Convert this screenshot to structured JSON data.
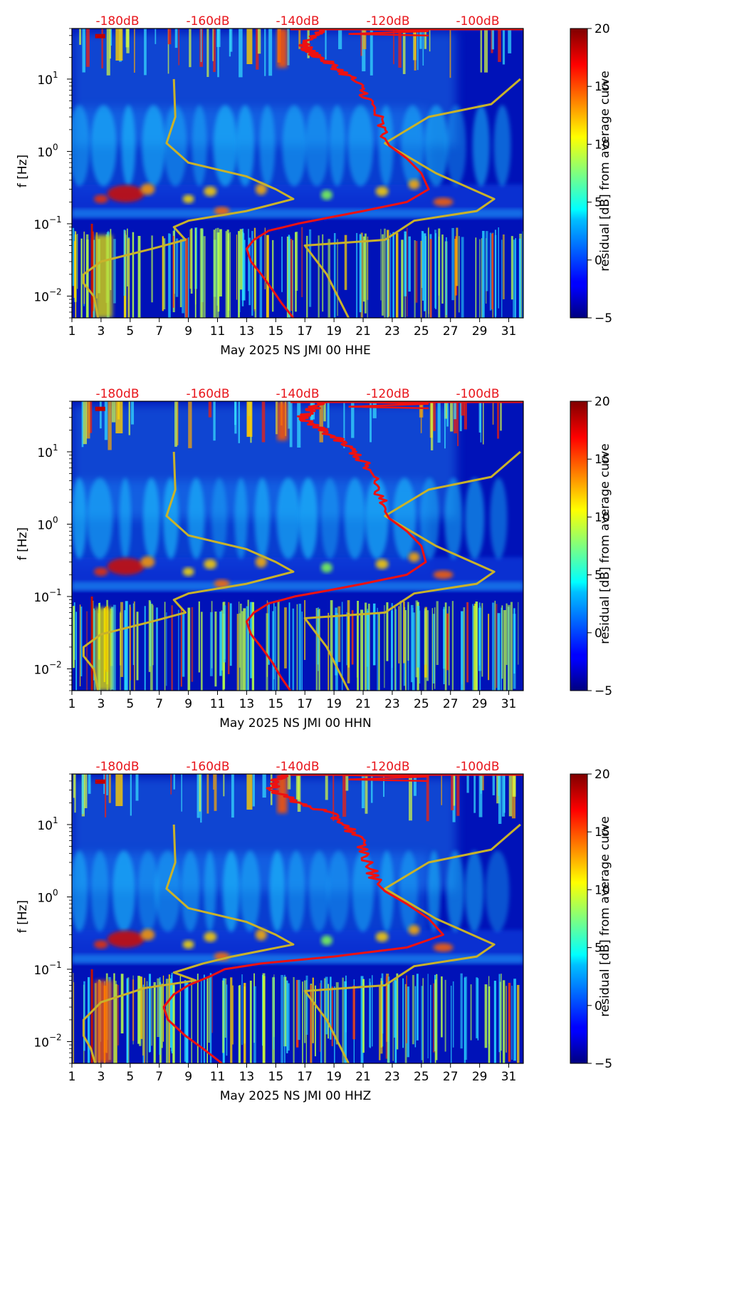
{
  "chart_data": [
    {
      "type": "heatmap",
      "xlabel": "May 2025 NS JMI 00 HHE",
      "ylabel": "f [Hz]",
      "x_ticks": [
        "1",
        "3",
        "5",
        "7",
        "9",
        "11",
        "13",
        "15",
        "17",
        "19",
        "21",
        "23",
        "25",
        "27",
        "29",
        "31"
      ],
      "xlim": [
        1,
        32
      ],
      "y_ticks": [
        {
          "base": "10",
          "exp": "1",
          "value": 10
        },
        {
          "base": "10",
          "exp": "0",
          "value": 1
        },
        {
          "base": "10",
          "exp": "−1",
          "value": 0.1
        },
        {
          "base": "10",
          "exp": "−2",
          "value": 0.01
        }
      ],
      "ylim": [
        0.005,
        50
      ],
      "y_scale": "log",
      "top_axis_labels": [
        "-180dB",
        "-160dB",
        "-140dB",
        "-120dB",
        "-100dB"
      ],
      "colorbar": {
        "label": "residual [dB] from average curve",
        "ticks": [
          "20",
          "15",
          "10",
          "5",
          "0",
          "−5"
        ],
        "range": [
          -5,
          20
        ],
        "colormap": "jet"
      },
      "red_curve_day": [
        [
          50,
          18.5
        ],
        [
          40,
          17.8
        ],
        [
          30,
          16.9
        ],
        [
          25,
          17.2
        ],
        [
          20,
          18.0
        ],
        [
          15,
          19.0
        ],
        [
          10,
          20.3
        ],
        [
          6,
          21.2
        ],
        [
          3,
          22.0
        ],
        [
          1.5,
          22.5
        ],
        [
          1.2,
          22.8
        ],
        [
          0.8,
          24.0
        ],
        [
          0.5,
          25.0
        ],
        [
          0.3,
          25.5
        ],
        [
          0.2,
          24.0
        ],
        [
          0.15,
          21.0
        ],
        [
          0.12,
          18.5
        ],
        [
          0.1,
          16.5
        ],
        [
          0.08,
          14.5
        ],
        [
          0.06,
          13.5
        ],
        [
          0.045,
          13.0
        ],
        [
          0.03,
          13.3
        ],
        [
          0.02,
          14.0
        ],
        [
          0.012,
          14.8
        ],
        [
          0.008,
          15.4
        ],
        [
          0.005,
          16.2
        ]
      ],
      "yellow_curve_day": [
        [
          10,
          8.0
        ],
        [
          3,
          8.1
        ],
        [
          1.3,
          7.5
        ],
        [
          0.7,
          9.0
        ],
        [
          0.45,
          13.0
        ],
        [
          0.3,
          15.0
        ],
        [
          0.22,
          16.2
        ],
        [
          0.15,
          13.0
        ],
        [
          0.11,
          9.0
        ],
        [
          0.09,
          8.0
        ],
        [
          0.06,
          8.8
        ],
        [
          0.045,
          6.5
        ],
        [
          0.03,
          3.0
        ],
        [
          0.02,
          1.8
        ],
        [
          0.015,
          1.8
        ],
        [
          0.01,
          2.5
        ],
        [
          0.005,
          2.8
        ]
      ],
      "yellow_curve_right": [
        [
          0.005,
          20.0
        ],
        [
          0.02,
          18.5
        ],
        [
          0.05,
          17.0
        ],
        [
          0.06,
          22.5
        ],
        [
          0.11,
          24.5
        ],
        [
          0.15,
          28.8
        ],
        [
          0.22,
          30.0
        ],
        [
          0.5,
          26.0
        ],
        [
          1.3,
          22.5
        ],
        [
          3,
          25.5
        ],
        [
          4.5,
          29.8
        ],
        [
          10,
          31.8
        ]
      ]
    },
    {
      "type": "heatmap",
      "xlabel": "May 2025 NS JMI 00 HHN",
      "ylabel": "f [Hz]",
      "x_ticks": [
        "1",
        "3",
        "5",
        "7",
        "9",
        "11",
        "13",
        "15",
        "17",
        "19",
        "21",
        "23",
        "25",
        "27",
        "29",
        "31"
      ],
      "xlim": [
        1,
        32
      ],
      "y_ticks": [
        {
          "base": "10",
          "exp": "1",
          "value": 10
        },
        {
          "base": "10",
          "exp": "0",
          "value": 1
        },
        {
          "base": "10",
          "exp": "−1",
          "value": 0.1
        },
        {
          "base": "10",
          "exp": "−2",
          "value": 0.01
        }
      ],
      "ylim": [
        0.005,
        50
      ],
      "y_scale": "log",
      "top_axis_labels": [
        "-180dB",
        "-160dB",
        "-140dB",
        "-120dB",
        "-100dB"
      ],
      "colorbar": {
        "label": "residual [dB] from average curve",
        "ticks": [
          "20",
          "15",
          "10",
          "5",
          "0",
          "−5"
        ],
        "range": [
          -5,
          20
        ],
        "colormap": "jet"
      },
      "red_curve_day": [
        [
          50,
          18.2
        ],
        [
          40,
          17.6
        ],
        [
          30,
          16.8
        ],
        [
          25,
          17.2
        ],
        [
          20,
          18.2
        ],
        [
          15,
          19.2
        ],
        [
          10,
          20.4
        ],
        [
          6,
          21.3
        ],
        [
          3,
          22.0
        ],
        [
          1.5,
          22.5
        ],
        [
          1.2,
          22.8
        ],
        [
          0.8,
          24.0
        ],
        [
          0.5,
          25.0
        ],
        [
          0.3,
          25.3
        ],
        [
          0.2,
          24.0
        ],
        [
          0.15,
          21.0
        ],
        [
          0.12,
          18.5
        ],
        [
          0.1,
          16.3
        ],
        [
          0.08,
          14.5
        ],
        [
          0.06,
          13.5
        ],
        [
          0.045,
          13.0
        ],
        [
          0.03,
          13.3
        ],
        [
          0.02,
          14.0
        ],
        [
          0.012,
          14.8
        ],
        [
          0.008,
          15.3
        ],
        [
          0.005,
          16.0
        ]
      ],
      "yellow_curve_day": [
        [
          10,
          8.0
        ],
        [
          3,
          8.1
        ],
        [
          1.3,
          7.5
        ],
        [
          0.7,
          9.0
        ],
        [
          0.45,
          13.0
        ],
        [
          0.3,
          15.0
        ],
        [
          0.22,
          16.2
        ],
        [
          0.15,
          13.0
        ],
        [
          0.11,
          9.0
        ],
        [
          0.09,
          8.0
        ],
        [
          0.06,
          8.8
        ],
        [
          0.045,
          6.5
        ],
        [
          0.03,
          3.0
        ],
        [
          0.02,
          1.8
        ],
        [
          0.015,
          1.8
        ],
        [
          0.01,
          2.5
        ],
        [
          0.005,
          2.8
        ]
      ],
      "yellow_curve_right": [
        [
          0.005,
          20.0
        ],
        [
          0.02,
          18.5
        ],
        [
          0.05,
          17.0
        ],
        [
          0.06,
          22.5
        ],
        [
          0.11,
          24.5
        ],
        [
          0.15,
          28.8
        ],
        [
          0.22,
          30.0
        ],
        [
          0.5,
          26.0
        ],
        [
          1.3,
          22.5
        ],
        [
          3,
          25.5
        ],
        [
          4.5,
          29.8
        ],
        [
          10,
          31.8
        ]
      ]
    },
    {
      "type": "heatmap",
      "xlabel": "May 2025 NS JMI 00 HHZ",
      "ylabel": "f [Hz]",
      "x_ticks": [
        "1",
        "3",
        "5",
        "7",
        "9",
        "11",
        "13",
        "15",
        "17",
        "19",
        "21",
        "23",
        "25",
        "27",
        "29",
        "31"
      ],
      "xlim": [
        1,
        32
      ],
      "y_ticks": [
        {
          "base": "10",
          "exp": "1",
          "value": 10
        },
        {
          "base": "10",
          "exp": "0",
          "value": 1
        },
        {
          "base": "10",
          "exp": "−1",
          "value": 0.1
        },
        {
          "base": "10",
          "exp": "−2",
          "value": 0.01
        }
      ],
      "ylim": [
        0.005,
        50
      ],
      "y_scale": "log",
      "top_axis_labels": [
        "-180dB",
        "-160dB",
        "-140dB",
        "-120dB",
        "-100dB"
      ],
      "colorbar": {
        "label": "residual [dB] from average curve",
        "ticks": [
          "20",
          "15",
          "10",
          "5",
          "0",
          "−5"
        ],
        "range": [
          -5,
          20
        ],
        "colormap": "jet"
      },
      "red_curve_day": [
        [
          50,
          15.5
        ],
        [
          40,
          15.0
        ],
        [
          30,
          14.8
        ],
        [
          20,
          16.5
        ],
        [
          15,
          18.5
        ],
        [
          10,
          19.8
        ],
        [
          6,
          20.8
        ],
        [
          3,
          21.3
        ],
        [
          1.5,
          22.0
        ],
        [
          1.2,
          22.5
        ],
        [
          0.8,
          24.0
        ],
        [
          0.5,
          25.5
        ],
        [
          0.3,
          26.5
        ],
        [
          0.2,
          24.0
        ],
        [
          0.15,
          19.0
        ],
        [
          0.12,
          14.0
        ],
        [
          0.1,
          11.5
        ],
        [
          0.08,
          10.5
        ],
        [
          0.06,
          9.0
        ],
        [
          0.045,
          8.0
        ],
        [
          0.03,
          7.3
        ],
        [
          0.02,
          7.6
        ],
        [
          0.012,
          8.8
        ],
        [
          0.008,
          10.0
        ],
        [
          0.005,
          11.3
        ]
      ],
      "yellow_curve_day": [
        [
          10,
          8.0
        ],
        [
          3,
          8.1
        ],
        [
          1.3,
          7.5
        ],
        [
          0.7,
          9.0
        ],
        [
          0.45,
          13.0
        ],
        [
          0.3,
          15.0
        ],
        [
          0.22,
          16.2
        ],
        [
          0.15,
          12.0
        ],
        [
          0.12,
          10.0
        ],
        [
          0.09,
          8.0
        ],
        [
          0.07,
          9.5
        ],
        [
          0.055,
          6.0
        ],
        [
          0.035,
          3.0
        ],
        [
          0.02,
          1.8
        ],
        [
          0.012,
          1.8
        ],
        [
          0.008,
          2.3
        ],
        [
          0.005,
          2.6
        ]
      ],
      "yellow_curve_right": [
        [
          0.005,
          20.0
        ],
        [
          0.02,
          18.5
        ],
        [
          0.05,
          17.0
        ],
        [
          0.06,
          22.5
        ],
        [
          0.11,
          24.5
        ],
        [
          0.15,
          28.8
        ],
        [
          0.22,
          30.0
        ],
        [
          0.5,
          26.0
        ],
        [
          1.3,
          22.5
        ],
        [
          3,
          25.5
        ],
        [
          4.5,
          29.8
        ],
        [
          10,
          31.8
        ]
      ]
    }
  ],
  "colors": {
    "red_curve": "#ee1111",
    "yellow_curve": "#c9b22a",
    "top_label": "#e8151b",
    "axis": "#000000"
  }
}
